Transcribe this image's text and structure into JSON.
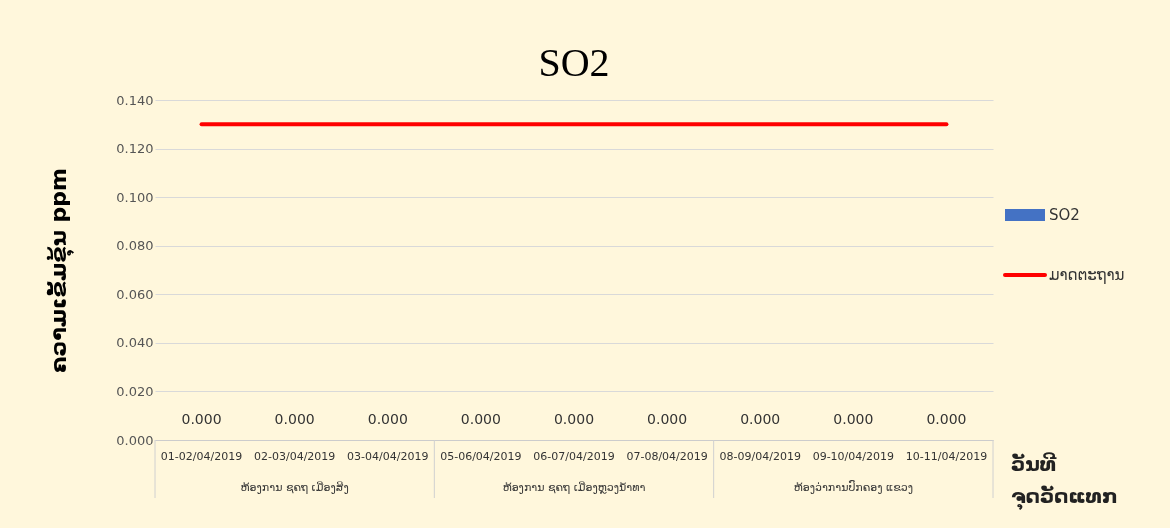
{
  "chart_data": {
    "type": "bar",
    "title": "SO2",
    "ylabel": "ຄວາມເຂັ້ມຂຸ້ນ ppm",
    "xlabel": "ວັນທີ\nຈຸດວັດແທກ",
    "categories": [
      "01-02/04/2019",
      "02-03/04/2019",
      "03-04/04/2019",
      "05-06/04/2019",
      "06-07/04/2019",
      "07-08/04/2019",
      "08-09/04/2019",
      "09-10/04/2019",
      "10-11/04/2019"
    ],
    "series": [
      {
        "name": "SO2",
        "color": "#4472c4",
        "values": [
          0,
          0,
          0,
          0,
          0,
          0,
          0,
          0,
          0
        ],
        "value_labels": [
          "0.000",
          "0.000",
          "0.000",
          "0.000",
          "0.000",
          "0.000",
          "0.000",
          "0.000",
          "0.000"
        ]
      },
      {
        "name": "ມາດຕະຖານ",
        "type": "line",
        "color": "#ff0000",
        "values": [
          0.13,
          0.13,
          0.13,
          0.13,
          0.13,
          0.13,
          0.13,
          0.13,
          0.13
        ]
      }
    ],
    "annotations": [
      "ຫ້ອງການ ຊຄຖ ເມືອງສິງ",
      "ຫ້ອງການ ຊຄຖ ເມືອງຫຼວງນ້ຳທາ",
      "ຫ້ອງວ່າການປົກຄອງ ແຂວງ"
    ],
    "ylim": [
      0,
      0.14
    ],
    "yticks": [
      {
        "value": 0,
        "label": "0.000"
      },
      {
        "value": 0.02,
        "label": "0.020"
      },
      {
        "value": 0.04,
        "label": "0.040"
      },
      {
        "value": 0.06,
        "label": "0.060"
      },
      {
        "value": 0.08,
        "label": "0.080"
      },
      {
        "value": 0.1,
        "label": "0.100"
      },
      {
        "value": 0.12,
        "label": "0.120"
      },
      {
        "value": 0.14,
        "label": "0.140"
      }
    ],
    "grid": "y",
    "legend": "right"
  }
}
